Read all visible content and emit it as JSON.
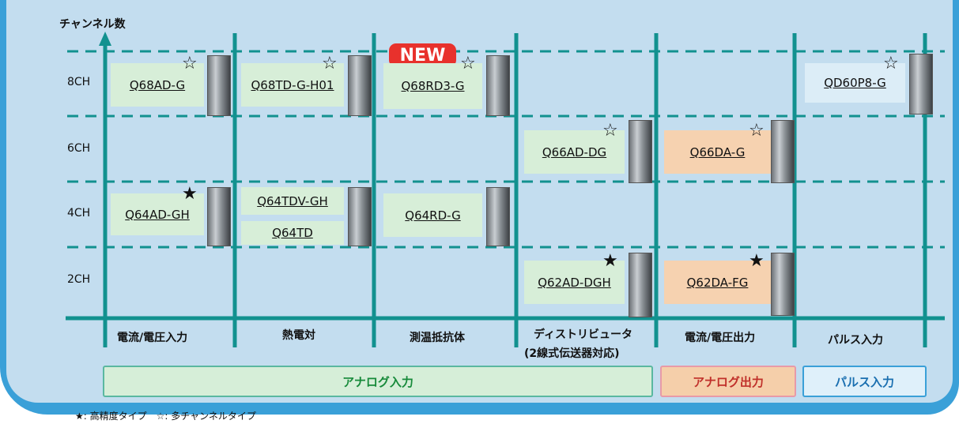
{
  "y_axis_label": "チャンネル数",
  "rows": [
    "8CH",
    "6CH",
    "4CH",
    "2CH"
  ],
  "columns": [
    "電流/電圧入力",
    "熱電対",
    "測温抵抗体",
    "ディストリビュータ",
    "(2線式伝送器対応)",
    "電流/電圧出力",
    "パルス入力"
  ],
  "groups": [
    "アナログ入力",
    "アナログ出力",
    "パルス入力"
  ],
  "new_badge": "NEW",
  "products": [
    {
      "label": "Q68AD-G",
      "mark": "☆"
    },
    {
      "label": "Q68TD-G-H01",
      "mark": "☆"
    },
    {
      "label": "Q68RD3-G",
      "mark": "☆"
    },
    {
      "label": "QD60P8-G",
      "mark": "☆"
    },
    {
      "label": "Q66AD-DG",
      "mark": "☆"
    },
    {
      "label": "Q66DA-G",
      "mark": "☆"
    },
    {
      "label": "Q64AD-GH",
      "mark": "★"
    },
    {
      "label": "Q64TDV-GH"
    },
    {
      "label": "Q64TD"
    },
    {
      "label": "Q64RD-G"
    },
    {
      "label": "Q62AD-DGH",
      "mark": "★"
    },
    {
      "label": "Q62DA-FG",
      "mark": "★"
    }
  ],
  "legend": "★: 高精度タイプ　☆: 多チャンネルタイプ"
}
